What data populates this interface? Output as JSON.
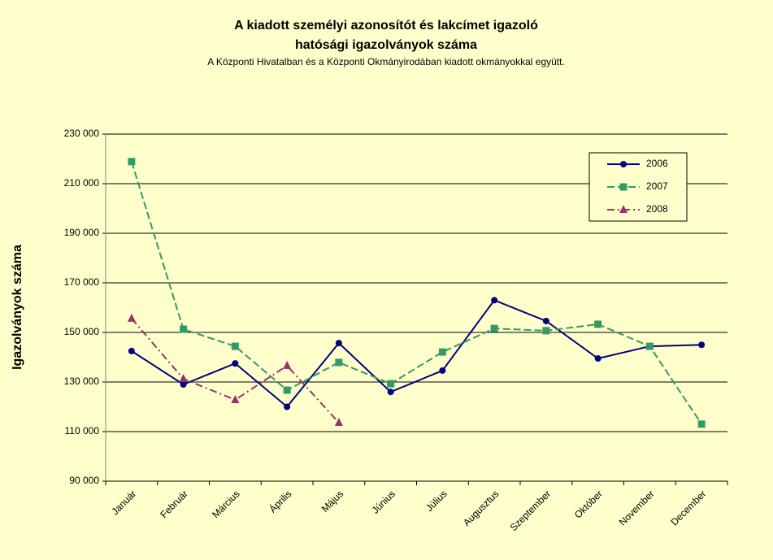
{
  "chart_data": {
    "type": "line",
    "title": "A kiadott személyi azonosítót és lakcímet igazoló",
    "title_line2": "hatósági igazolványok száma",
    "subtitle": "A Központi Hivatalban és a Központi Okmányirodában kiadott okmányokkal együtt.",
    "y_label": "Igazolványok száma",
    "categories": [
      "Január",
      "Február",
      "Március",
      "Április",
      "Május",
      "Június",
      "Július",
      "Augusztus",
      "Szeptember",
      "Október",
      "November",
      "December"
    ],
    "series": [
      {
        "name": "2006",
        "color": "#000080",
        "marker": "circle",
        "dash": "solid",
        "values": [
          142500,
          129000,
          137500,
          120000,
          145700,
          126000,
          134600,
          163000,
          154600,
          139500,
          144400,
          145000
        ]
      },
      {
        "name": "2007",
        "color": "#339966",
        "marker": "square",
        "dash": "dashed",
        "values": [
          218900,
          151300,
          144400,
          126700,
          137900,
          129300,
          142100,
          151600,
          150700,
          153300,
          144400,
          113000
        ]
      },
      {
        "name": "2008",
        "color": "#993366",
        "marker": "triangle",
        "dash": "dashdot",
        "values": [
          155600,
          131300,
          122800,
          136600,
          113600,
          null,
          null,
          null,
          null,
          null,
          null,
          null
        ]
      }
    ],
    "ylim": [
      90000,
      230000
    ],
    "yticks": [
      {
        "value": 90000,
        "label": "90 000"
      },
      {
        "value": 110000,
        "label": "110 000"
      },
      {
        "value": 130000,
        "label": "130 000"
      },
      {
        "value": 150000,
        "label": "150 000"
      },
      {
        "value": 170000,
        "label": "170 000"
      },
      {
        "value": 190000,
        "label": "190 000"
      },
      {
        "value": 210000,
        "label": "210 000"
      },
      {
        "value": 230000,
        "label": "230 000"
      }
    ],
    "grid": true,
    "legend": "top-right"
  }
}
